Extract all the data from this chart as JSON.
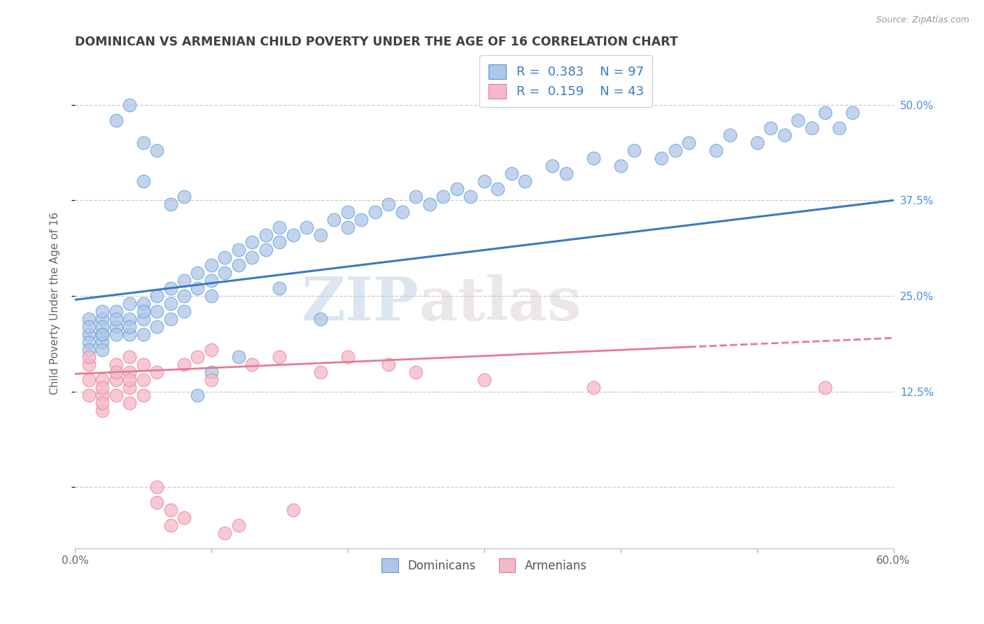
{
  "title": "DOMINICAN VS ARMENIAN CHILD POVERTY UNDER THE AGE OF 16 CORRELATION CHART",
  "source": "Source: ZipAtlas.com",
  "ylabel": "Child Poverty Under the Age of 16",
  "xlim": [
    0.0,
    0.6
  ],
  "ylim": [
    -0.08,
    0.56
  ],
  "xticks": [
    0.0,
    0.1,
    0.2,
    0.3,
    0.4,
    0.5,
    0.6
  ],
  "xticklabels": [
    "0.0%",
    "",
    "",
    "",
    "",
    "",
    "60.0%"
  ],
  "ytick_positions": [
    0.0,
    0.125,
    0.25,
    0.375,
    0.5
  ],
  "ytick_labels": [
    "",
    "12.5%",
    "25.0%",
    "37.5%",
    "50.0%"
  ],
  "watermark_zip": "ZIP",
  "watermark_atlas": "atlas",
  "dominican_color": "#aec6e8",
  "dominican_edge_color": "#5b9bd5",
  "armenian_color": "#f5b8c8",
  "armenian_edge_color": "#e87a96",
  "dominican_line_color": "#3a7bbf",
  "armenian_line_color": "#e87a96",
  "background_color": "#ffffff",
  "grid_color": "#cccccc",
  "title_color": "#404040",
  "tick_color_right": "#4a90d9",
  "dominican_scatter_x": [
    0.01,
    0.01,
    0.01,
    0.01,
    0.01,
    0.02,
    0.02,
    0.02,
    0.02,
    0.02,
    0.02,
    0.02,
    0.03,
    0.03,
    0.03,
    0.03,
    0.04,
    0.04,
    0.04,
    0.04,
    0.05,
    0.05,
    0.05,
    0.05,
    0.06,
    0.06,
    0.06,
    0.07,
    0.07,
    0.07,
    0.08,
    0.08,
    0.08,
    0.09,
    0.09,
    0.1,
    0.1,
    0.1,
    0.11,
    0.11,
    0.12,
    0.12,
    0.13,
    0.13,
    0.14,
    0.14,
    0.15,
    0.15,
    0.16,
    0.17,
    0.18,
    0.19,
    0.2,
    0.2,
    0.21,
    0.22,
    0.23,
    0.24,
    0.25,
    0.26,
    0.27,
    0.28,
    0.29,
    0.3,
    0.31,
    0.32,
    0.33,
    0.35,
    0.36,
    0.38,
    0.4,
    0.41,
    0.43,
    0.44,
    0.45,
    0.47,
    0.48,
    0.5,
    0.51,
    0.52,
    0.53,
    0.54,
    0.55,
    0.56,
    0.57,
    0.09,
    0.07,
    0.05,
    0.1,
    0.12,
    0.08,
    0.06,
    0.04,
    0.03,
    0.05,
    0.15,
    0.18
  ],
  "dominican_scatter_y": [
    0.2,
    0.22,
    0.19,
    0.21,
    0.18,
    0.22,
    0.2,
    0.23,
    0.19,
    0.21,
    0.2,
    0.18,
    0.23,
    0.21,
    0.22,
    0.2,
    0.22,
    0.24,
    0.2,
    0.21,
    0.24,
    0.22,
    0.23,
    0.2,
    0.25,
    0.23,
    0.21,
    0.26,
    0.24,
    0.22,
    0.27,
    0.25,
    0.23,
    0.28,
    0.26,
    0.29,
    0.27,
    0.25,
    0.3,
    0.28,
    0.31,
    0.29,
    0.32,
    0.3,
    0.33,
    0.31,
    0.34,
    0.32,
    0.33,
    0.34,
    0.33,
    0.35,
    0.34,
    0.36,
    0.35,
    0.36,
    0.37,
    0.36,
    0.38,
    0.37,
    0.38,
    0.39,
    0.38,
    0.4,
    0.39,
    0.41,
    0.4,
    0.42,
    0.41,
    0.43,
    0.42,
    0.44,
    0.43,
    0.44,
    0.45,
    0.44,
    0.46,
    0.45,
    0.47,
    0.46,
    0.48,
    0.47,
    0.49,
    0.47,
    0.49,
    0.12,
    0.37,
    0.4,
    0.15,
    0.17,
    0.38,
    0.44,
    0.5,
    0.48,
    0.45,
    0.26,
    0.22
  ],
  "armenian_scatter_x": [
    0.01,
    0.01,
    0.01,
    0.01,
    0.02,
    0.02,
    0.02,
    0.02,
    0.02,
    0.03,
    0.03,
    0.03,
    0.03,
    0.04,
    0.04,
    0.04,
    0.04,
    0.04,
    0.05,
    0.05,
    0.05,
    0.06,
    0.06,
    0.06,
    0.07,
    0.07,
    0.08,
    0.08,
    0.09,
    0.1,
    0.1,
    0.11,
    0.12,
    0.13,
    0.15,
    0.16,
    0.18,
    0.2,
    0.23,
    0.25,
    0.3,
    0.38,
    0.55
  ],
  "armenian_scatter_y": [
    0.16,
    0.14,
    0.17,
    0.12,
    0.14,
    0.12,
    0.1,
    0.13,
    0.11,
    0.14,
    0.16,
    0.12,
    0.15,
    0.17,
    0.13,
    0.15,
    0.11,
    0.14,
    0.16,
    0.14,
    0.12,
    0.0,
    -0.02,
    0.15,
    -0.03,
    -0.05,
    -0.04,
    0.16,
    0.17,
    0.18,
    0.14,
    -0.06,
    -0.05,
    0.16,
    0.17,
    -0.03,
    0.15,
    0.17,
    0.16,
    0.15,
    0.14,
    0.13,
    0.13
  ],
  "dominican_line": {
    "x0": 0.0,
    "y0": 0.245,
    "x1": 0.6,
    "y1": 0.375
  },
  "armenian_line": {
    "x0": 0.0,
    "y0": 0.148,
    "x1": 0.6,
    "y1": 0.195
  },
  "armenian_line_solid_end": 0.45
}
